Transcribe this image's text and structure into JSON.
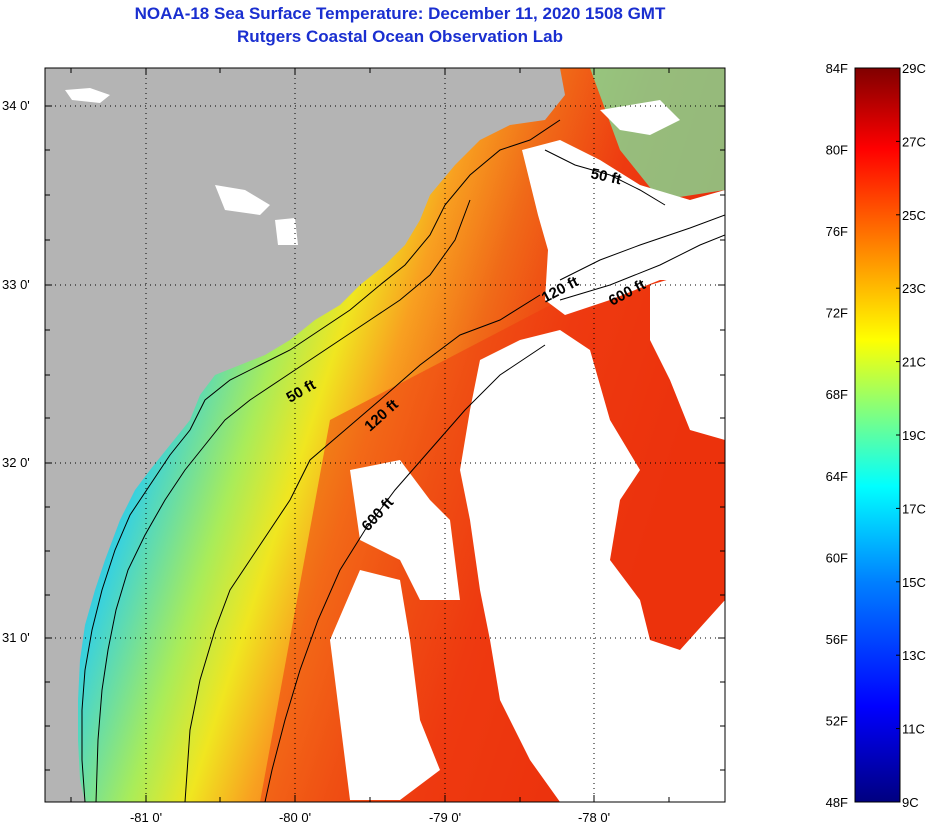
{
  "header": {
    "title": "NOAA-18 Sea Surface Temperature:  December 11, 2020 1508 GMT",
    "subtitle": "Rutgers Coastal Ocean Observation Lab"
  },
  "map": {
    "lat_labels": [
      "34 0'",
      "33 0'",
      "32 0'",
      "31 0'"
    ],
    "lon_labels": [
      "-81 0'",
      "-80 0'",
      "-79 0'",
      "-78 0'"
    ],
    "contours": [
      {
        "label": "50 ft"
      },
      {
        "label": "120 ft"
      },
      {
        "label": "600 ft"
      },
      {
        "label": "50 ft"
      },
      {
        "label": "120 ft"
      },
      {
        "label": "600 ft"
      }
    ],
    "colors": {
      "land": "#b4b4b4",
      "cloud": "#ffffff",
      "grid": "#000000"
    }
  },
  "colorbar": {
    "fahrenheit_labels": [
      "84F",
      "80F",
      "76F",
      "72F",
      "68F",
      "64F",
      "60F",
      "56F",
      "52F",
      "48F"
    ],
    "celsius_labels": [
      "29C",
      "27C",
      "25C",
      "23C",
      "21C",
      "19C",
      "17C",
      "15C",
      "13C",
      "11C",
      "9C"
    ],
    "gradient_stops": [
      "#000080",
      "#0000ff",
      "#0080ff",
      "#00ffff",
      "#80ff80",
      "#ffff00",
      "#ff8000",
      "#ff0000",
      "#800000"
    ]
  }
}
